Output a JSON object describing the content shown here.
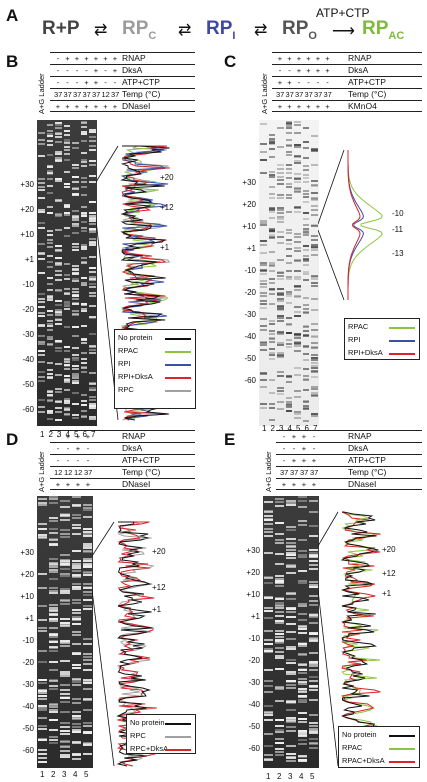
{
  "panels": {
    "A": {
      "label": "A",
      "scheme": {
        "rp": "R+P",
        "rpc": "RP",
        "rpc_sub": "C",
        "rpi": "RP",
        "rpi_sub": "I",
        "rpo": "RP",
        "rpo_sub": "O",
        "arrow_label": "ATP+CTP",
        "rpac": "RP",
        "rpac_sub": "AC"
      }
    },
    "B": {
      "label": "B",
      "ladder": "A+G Ladder",
      "rows": [
        "RNAP",
        "DksA",
        "ATP+CTP",
        "Temp (°C)",
        "DNaseI"
      ],
      "vals": [
        [
          "-",
          "+",
          "+",
          "+",
          "+",
          "+",
          "+"
        ],
        [
          "-",
          "-",
          "-",
          "-",
          "+",
          "-",
          "+"
        ],
        [
          "-",
          "-",
          "-",
          "+",
          "+",
          "-",
          "-"
        ],
        [
          "37",
          "37",
          "37",
          "37",
          "37",
          "12",
          "37"
        ],
        [
          "+",
          "+",
          "+",
          "+",
          "+",
          "+",
          "+"
        ]
      ],
      "positions": [
        "+30",
        "+20",
        "+10",
        "+1",
        "-10",
        "-20",
        "-30",
        "-40",
        "-50",
        "-60"
      ],
      "lanes": [
        "1",
        "2",
        "3",
        "4",
        "5",
        "6",
        "7"
      ],
      "trace_marks": [
        "+20",
        "+12",
        "+1"
      ],
      "legend": [
        "No protein",
        "RPAC",
        "RPI",
        "RPI+DksA",
        "RPC"
      ]
    },
    "C": {
      "label": "C",
      "ladder": "A+G Ladder",
      "rows": [
        "RNAP",
        "DksA",
        "ATP+CTP",
        "Temp (°C)",
        "KMnO4"
      ],
      "vals": [
        [
          "+",
          "+",
          "+",
          "+",
          "+",
          "+"
        ],
        [
          "-",
          "-",
          "+",
          "+",
          "+",
          "+"
        ],
        [
          "+",
          "+",
          "-",
          "-",
          "-",
          "-"
        ],
        [
          "37",
          "37",
          "37",
          "37",
          "37",
          "37"
        ],
        [
          "+",
          "+",
          "+",
          "+",
          "+",
          "+"
        ]
      ],
      "positions": [
        "+30",
        "+20",
        "+10",
        "+1",
        "-10",
        "-20",
        "-30",
        "-40",
        "-50",
        "-60"
      ],
      "lanes": [
        "1",
        "2",
        "3",
        "4",
        "5",
        "6",
        "7"
      ],
      "trace_marks": [
        "-10",
        "-11",
        "-13"
      ],
      "legend": [
        "RPAC",
        "RPI",
        "RPI+DksA"
      ]
    },
    "D": {
      "label": "D",
      "ladder": "A+G Ladder",
      "rows": [
        "RNAP",
        "DksA",
        "ATP+CTP",
        "Temp (°C)",
        "DNaseI"
      ],
      "vals": [
        [
          "-",
          "+",
          "+",
          "+"
        ],
        [
          "-",
          "-",
          "+",
          "-"
        ],
        [
          "-",
          "-",
          "-",
          "-"
        ],
        [
          "12",
          "12",
          "12",
          "37"
        ],
        [
          "+",
          "+",
          "+",
          "+"
        ]
      ],
      "positions": [
        "+30",
        "+20",
        "+10",
        "+1",
        "-10",
        "-20",
        "-30",
        "-40",
        "-50",
        "-60"
      ],
      "lanes": [
        "1",
        "2",
        "3",
        "4",
        "5"
      ],
      "trace_marks": [
        "+20",
        "+12",
        "+1"
      ],
      "legend": [
        "No protein",
        "RPC",
        "RPC+DksA"
      ]
    },
    "E": {
      "label": "E",
      "ladder": "A+G Ladder",
      "rows": [
        "RNAP",
        "DksA",
        "ATP+CTP",
        "Temp (°C)",
        "DNaseI"
      ],
      "vals": [
        [
          "-",
          "+",
          "+",
          "-"
        ],
        [
          "-",
          "-",
          "+",
          "-"
        ],
        [
          "-",
          "+",
          "+",
          "+"
        ],
        [
          "37",
          "37",
          "37",
          "37"
        ],
        [
          "+",
          "+",
          "+",
          "+"
        ]
      ],
      "positions": [
        "+30",
        "+20",
        "+10",
        "+1",
        "-10",
        "-20",
        "-30",
        "-40",
        "-50",
        "-60"
      ],
      "lanes": [
        "1",
        "2",
        "3",
        "4",
        "5"
      ],
      "trace_marks": [
        "+20",
        "+12",
        "+1"
      ],
      "legend": [
        "No protein",
        "RPAC",
        "RPAC+DksA"
      ]
    }
  },
  "colors": {
    "black": "#111111",
    "green": "#8cc63f",
    "blue": "#3b4fa8",
    "red": "#d9252a",
    "grey": "#a0a0a0",
    "rpc_text": "#9b9b9b",
    "rpi_text": "#3f49a0",
    "rpac_text": "#7dbb3a"
  }
}
